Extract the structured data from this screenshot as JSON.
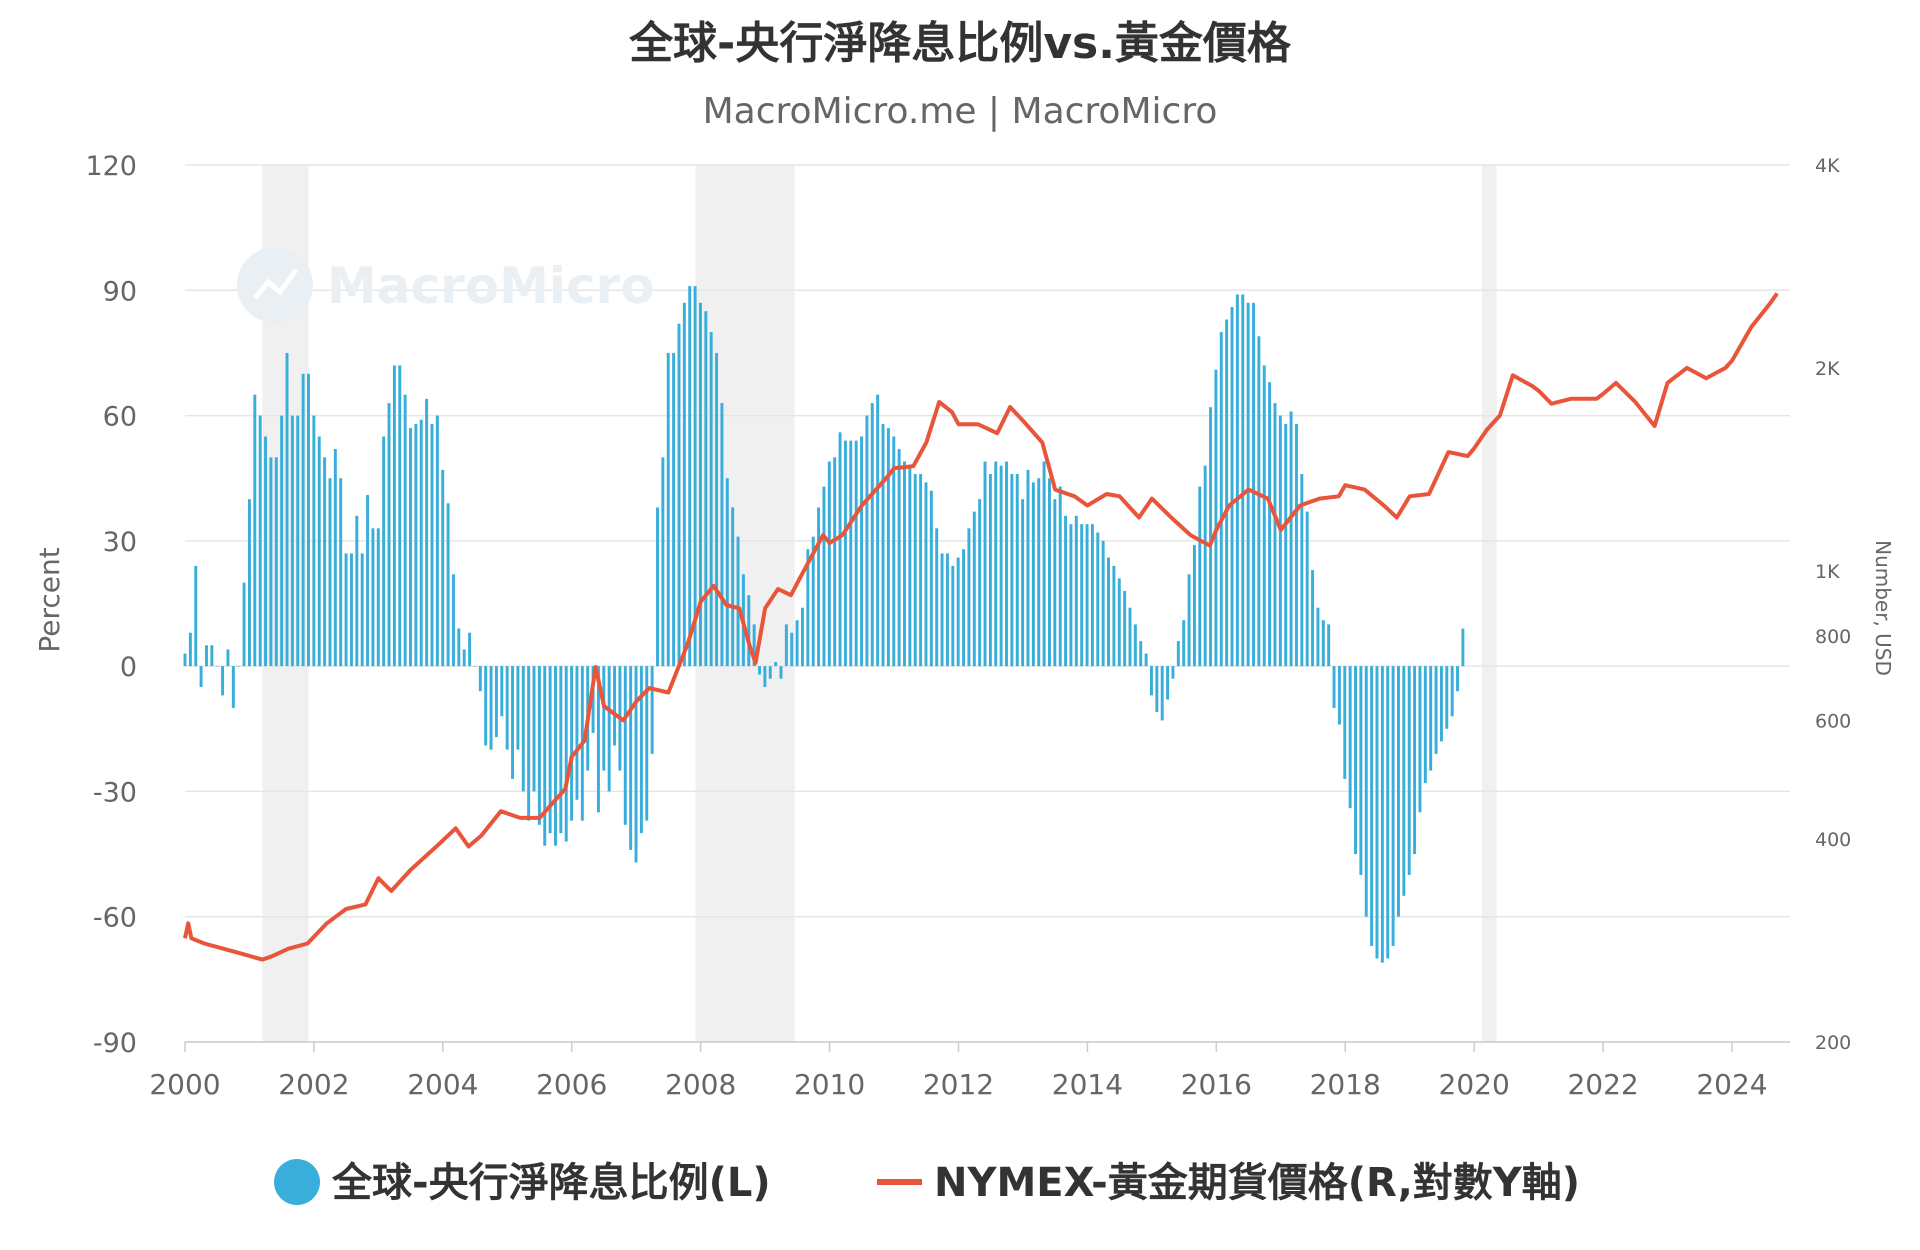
{
  "chart_data": {
    "type": "bar+line",
    "title": "全球-央行淨降息比例vs.黃金價格",
    "subtitle": "MacroMicro.me | MacroMicro",
    "watermark": "MacroMicro",
    "ylabel_left": "Percent",
    "ylabel_right": "Number, USD",
    "ylim_left": [
      -90,
      120
    ],
    "yticks_left": [
      "120",
      "90",
      "60",
      "30",
      "0",
      "-30",
      "-60",
      "-90"
    ],
    "ylim_right_log": [
      200,
      4000
    ],
    "yticks_right": [
      {
        "value": 4000,
        "label": "4K"
      },
      {
        "value": 2000,
        "label": "2K"
      },
      {
        "value": 1000,
        "label": "1K"
      },
      {
        "value": 800,
        "label": "800"
      },
      {
        "value": 600,
        "label": "600"
      },
      {
        "value": 400,
        "label": "400"
      },
      {
        "value": 200,
        "label": "200"
      }
    ],
    "xlim": [
      2000,
      2024.9
    ],
    "xticks": [
      "2000",
      "2002",
      "2004",
      "2006",
      "2008",
      "2010",
      "2012",
      "2014",
      "2016",
      "2018",
      "2020",
      "2022",
      "2024"
    ],
    "grid": true,
    "legend_position": "bottom-center",
    "recession_bands": [
      [
        2001.2,
        2001.92
      ],
      [
        2007.92,
        2009.46
      ],
      [
        2020.12,
        2020.35
      ]
    ],
    "colors": {
      "bar": "#3aaedb",
      "line": "#e8553a",
      "band": "#f0f0f0",
      "grid": "#e6e6e6"
    },
    "series": [
      {
        "name": "全球-央行淨降息比例(L)",
        "type": "bar",
        "start": 2000.0,
        "step": 0.0833,
        "values": [
          3,
          8,
          24,
          -5,
          5,
          5,
          0,
          -7,
          4,
          -10,
          0,
          20,
          40,
          65,
          60,
          55,
          50,
          50,
          60,
          75,
          60,
          60,
          70,
          70,
          60,
          55,
          50,
          45,
          52,
          45,
          27,
          27,
          36,
          27,
          41,
          33,
          33,
          55,
          63,
          72,
          72,
          65,
          57,
          58,
          59,
          64,
          58,
          60,
          47,
          39,
          22,
          9,
          4,
          8,
          0,
          -6,
          -19,
          -20,
          -17,
          -12,
          -20,
          -27,
          -20,
          -30,
          -37,
          -30,
          -38,
          -43,
          -40,
          -43,
          -40,
          -42,
          -37,
          -32,
          -37,
          -25,
          -16,
          -35,
          -25,
          -30,
          -19,
          -25,
          -38,
          -44,
          -47,
          -40,
          -37,
          -21,
          38,
          50,
          75,
          75,
          82,
          87,
          91,
          91,
          87,
          85,
          80,
          75,
          63,
          45,
          38,
          31,
          22,
          17,
          10,
          -2,
          -5,
          -3,
          1,
          -3,
          10,
          8,
          11,
          14,
          28,
          31,
          38,
          43,
          49,
          50,
          56,
          54,
          54,
          54,
          55,
          60,
          63,
          65,
          58,
          57,
          55,
          52,
          49,
          48,
          46,
          46,
          44,
          42,
          33,
          27,
          27,
          24,
          26,
          28,
          33,
          37,
          40,
          49,
          46,
          49,
          48,
          49,
          46,
          46,
          40,
          47,
          44,
          45,
          49,
          45,
          40,
          43,
          36,
          34,
          36,
          34,
          34,
          34,
          32,
          30,
          26,
          24,
          21,
          18,
          14,
          10,
          6,
          3,
          -7,
          -11,
          -13,
          -8,
          -3,
          6,
          11,
          22,
          29,
          43,
          48,
          62,
          71,
          80,
          83,
          86,
          89,
          89,
          87,
          87,
          79,
          72,
          68,
          63,
          60,
          58,
          61,
          58,
          46,
          37,
          23,
          14,
          11,
          10,
          -10,
          -14,
          -27,
          -34,
          -45,
          -50,
          -60,
          -67,
          -70,
          -71,
          -70,
          -67,
          -60,
          -55,
          -50,
          -45,
          -35,
          -28,
          -25,
          -21,
          -18,
          -15,
          -12,
          -6,
          9
        ]
      },
      {
        "name": "NYMEX-黃金期貨價格(R,對數Y軸)",
        "type": "line",
        "x": [
          2000.0,
          2000.05,
          2000.1,
          2000.3,
          2000.6,
          2000.9,
          2001.2,
          2001.35,
          2001.6,
          2001.9,
          2002.2,
          2002.5,
          2002.8,
          2003.0,
          2003.2,
          2003.5,
          2003.9,
          2004.2,
          2004.4,
          2004.6,
          2004.9,
          2005.2,
          2005.5,
          2005.9,
          2006.0,
          2006.2,
          2006.37,
          2006.5,
          2006.8,
          2007.0,
          2007.2,
          2007.5,
          2007.8,
          2008.0,
          2008.2,
          2008.4,
          2008.6,
          2008.75,
          2008.85,
          2009.0,
          2009.2,
          2009.4,
          2009.6,
          2009.9,
          2010.0,
          2010.2,
          2010.5,
          2010.9,
          2011.0,
          2011.3,
          2011.5,
          2011.7,
          2011.9,
          2012.0,
          2012.3,
          2012.6,
          2012.8,
          2013.0,
          2013.3,
          2013.5,
          2013.8,
          2014.0,
          2014.3,
          2014.5,
          2014.8,
          2015.0,
          2015.3,
          2015.6,
          2015.9,
          2016.0,
          2016.2,
          2016.5,
          2016.8,
          2017.0,
          2017.3,
          2017.6,
          2017.9,
          2018.0,
          2018.3,
          2018.6,
          2018.8,
          2019.0,
          2019.3,
          2019.6,
          2019.9,
          2020.0,
          2020.2,
          2020.4,
          2020.6,
          2020.9,
          2021.0,
          2021.2,
          2021.5,
          2021.9,
          2022.0,
          2022.2,
          2022.5,
          2022.8,
          2023.0,
          2023.3,
          2023.6,
          2023.9,
          2024.0,
          2024.3,
          2024.6,
          2024.7
        ],
        "values": [
          285,
          300,
          285,
          280,
          275,
          270,
          265,
          268,
          275,
          280,
          300,
          315,
          320,
          350,
          335,
          360,
          390,
          415,
          390,
          405,
          440,
          430,
          430,
          475,
          530,
          560,
          720,
          630,
          600,
          640,
          670,
          660,
          780,
          900,
          950,
          890,
          880,
          780,
          730,
          880,
          940,
          920,
          1000,
          1130,
          1100,
          1130,
          1250,
          1380,
          1420,
          1430,
          1550,
          1780,
          1720,
          1650,
          1650,
          1600,
          1750,
          1670,
          1550,
          1320,
          1290,
          1250,
          1300,
          1290,
          1200,
          1280,
          1200,
          1130,
          1090,
          1150,
          1250,
          1320,
          1280,
          1150,
          1250,
          1280,
          1290,
          1340,
          1320,
          1250,
          1200,
          1290,
          1300,
          1500,
          1480,
          1520,
          1620,
          1700,
          1950,
          1880,
          1850,
          1770,
          1800,
          1800,
          1830,
          1900,
          1780,
          1640,
          1900,
          2000,
          1930,
          2000,
          2050,
          2300,
          2500,
          2580
        ]
      }
    ]
  },
  "legend": {
    "bar_label": "全球-央行淨降息比例(L)",
    "line_label": "NYMEX-黃金期貨價格(R,對數Y軸)"
  }
}
